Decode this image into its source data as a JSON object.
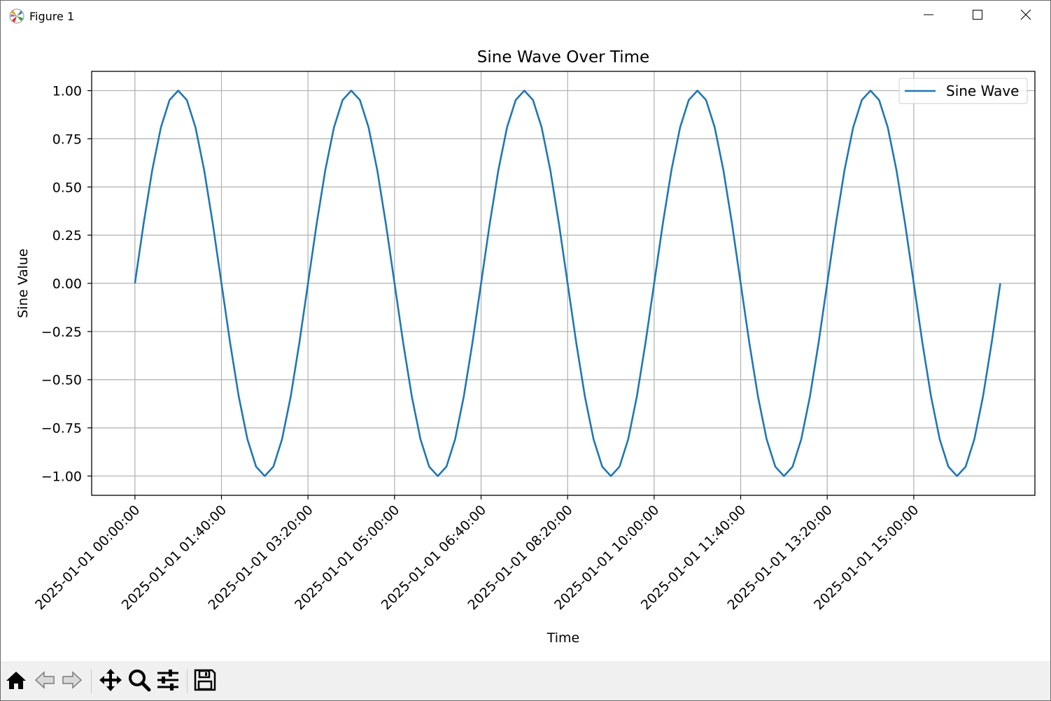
{
  "window": {
    "title": "Figure 1",
    "minimize_icon": "minimize-icon",
    "maximize_icon": "maximize-icon",
    "close_icon": "close-icon",
    "app_icon": "matplotlib-icon"
  },
  "toolbar": {
    "items": [
      {
        "name": "home-button",
        "icon": "home-icon"
      },
      {
        "name": "back-button",
        "icon": "back-arrow-icon"
      },
      {
        "name": "forward-button",
        "icon": "forward-arrow-icon"
      },
      {
        "name": "pan-button",
        "icon": "move-icon"
      },
      {
        "name": "zoom-button",
        "icon": "zoom-icon"
      },
      {
        "name": "configure-subplots-button",
        "icon": "sliders-icon"
      },
      {
        "name": "save-button",
        "icon": "save-icon"
      }
    ]
  },
  "colors": {
    "line": "#1f77b4",
    "grid": "#b0b0b0",
    "axes": "#000000",
    "toolbar_bg": "#f0f0f0"
  },
  "chart_data": {
    "type": "line",
    "title": "Sine Wave Over Time",
    "xlabel": "Time",
    "ylabel": "Sine Value",
    "grid": true,
    "legend_position": "upper right",
    "x_start": "2025-01-01 00:00:00",
    "x_end": "2025-01-01 16:30:00",
    "x_step_minutes": 10,
    "xlim": [
      "2025-01-01 -00:50:00",
      "2025-01-01 17:20:00"
    ],
    "ylim": [
      -1.1,
      1.1
    ],
    "x_tick_labels": [
      "2025-01-01 00:00:00",
      "2025-01-01 01:40:00",
      "2025-01-01 03:20:00",
      "2025-01-01 05:00:00",
      "2025-01-01 06:40:00",
      "2025-01-01 08:20:00",
      "2025-01-01 10:00:00",
      "2025-01-01 11:40:00",
      "2025-01-01 13:20:00",
      "2025-01-01 15:00:00"
    ],
    "y_ticks": [
      1.0,
      0.75,
      0.5,
      0.25,
      0.0,
      -0.25,
      -0.5,
      -0.75,
      -1.0
    ],
    "y_tick_labels": [
      "1.00",
      "0.75",
      "0.50",
      "0.25",
      "0.00",
      "−0.25",
      "−0.50",
      "−0.75",
      "−1.00"
    ],
    "series": [
      {
        "name": "Sine Wave",
        "values": [
          0.0,
          0.3093,
          0.5878,
          0.809,
          0.9511,
          1.0,
          0.9511,
          0.809,
          0.5878,
          0.309,
          0.0,
          -0.309,
          -0.5878,
          -0.809,
          -0.9511,
          -1.0,
          -0.9511,
          -0.809,
          -0.5878,
          -0.309,
          0.0,
          0.309,
          0.5878,
          0.809,
          0.9511,
          1.0,
          0.9511,
          0.809,
          0.5878,
          0.309,
          0.0,
          -0.309,
          -0.5878,
          -0.809,
          -0.9511,
          -1.0,
          -0.9511,
          -0.809,
          -0.5878,
          -0.309,
          0.0,
          0.309,
          0.5878,
          0.809,
          0.9511,
          1.0,
          0.9511,
          0.809,
          0.5878,
          0.309,
          0.0,
          -0.309,
          -0.5878,
          -0.809,
          -0.9511,
          -1.0,
          -0.9511,
          -0.809,
          -0.5878,
          -0.309,
          0.0,
          0.309,
          0.5878,
          0.809,
          0.9511,
          1.0,
          0.9511,
          0.809,
          0.5878,
          0.309,
          0.0,
          -0.309,
          -0.5878,
          -0.809,
          -0.9511,
          -1.0,
          -0.9511,
          -0.809,
          -0.5878,
          -0.309,
          0.0,
          0.309,
          0.5878,
          0.809,
          0.9511,
          1.0,
          0.9511,
          0.809,
          0.5878,
          0.309,
          0.0,
          -0.309,
          -0.5878,
          -0.809,
          -0.9511,
          -1.0,
          -0.9511,
          -0.809,
          -0.5878,
          -0.309,
          0.0
        ]
      }
    ]
  }
}
